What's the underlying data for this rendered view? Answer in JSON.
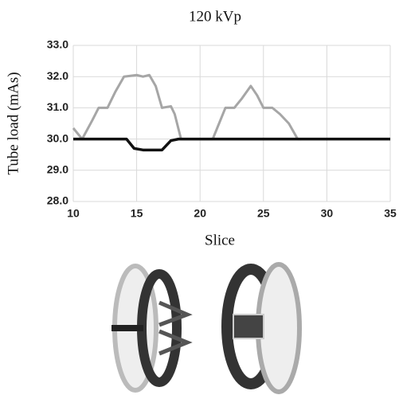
{
  "chart_data": {
    "type": "line",
    "title": "120 kVp",
    "xlabel": "Slice",
    "ylabel": "Tube load (mAs)",
    "xlim": [
      10,
      35
    ],
    "xticks": [
      10,
      15,
      20,
      25,
      30,
      35
    ],
    "ylim": [
      28,
      33
    ],
    "yticks": [
      {
        "value": 28,
        "label": "28.0"
      },
      {
        "value": 29,
        "label": "29.0"
      },
      {
        "value": 30,
        "label": "30.0"
      },
      {
        "value": 31,
        "label": "31.0"
      },
      {
        "value": 32,
        "label": "32.0"
      },
      {
        "value": 33,
        "label": "33.0"
      }
    ],
    "grid": true,
    "series": [
      {
        "color": "#a6a6a6",
        "x": [
          10,
          10.7,
          11.5,
          12,
          12.7,
          13.3,
          14,
          15,
          15.5,
          16,
          16.5,
          17,
          17.7,
          18,
          18.5,
          21,
          21.5,
          22,
          22.7,
          23.3,
          24,
          24.5,
          25,
          25.7,
          26.3,
          27,
          27.7,
          28
        ],
        "values": [
          30.35,
          30.0,
          30.6,
          31.0,
          31.0,
          31.5,
          32.0,
          32.05,
          32.0,
          32.05,
          31.7,
          31.0,
          31.05,
          30.8,
          30.0,
          30.0,
          30.5,
          31.0,
          31.0,
          31.3,
          31.7,
          31.4,
          31.0,
          31.0,
          30.8,
          30.5,
          30.0,
          30.0
        ]
      },
      {
        "color": "#111111",
        "x": [
          10,
          13.5,
          14.2,
          14.8,
          15.5,
          17,
          17.7,
          18.3,
          35
        ],
        "values": [
          30.0,
          30.0,
          30.0,
          29.7,
          29.65,
          29.65,
          29.95,
          30.0,
          30.0
        ]
      }
    ]
  }
}
